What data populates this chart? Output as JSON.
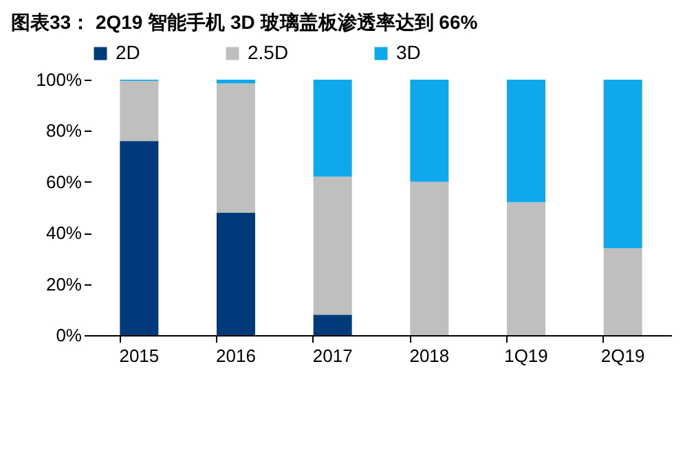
{
  "chart_data": {
    "type": "bar",
    "title": "图表33：  2Q19 智能手机 3D 玻璃盖板渗透率达到 66%",
    "categories": [
      "2015",
      "2016",
      "2017",
      "2018",
      "1Q19",
      "2Q19"
    ],
    "stacked": true,
    "series": [
      {
        "name": "2D",
        "color": "#003a7a",
        "values": [
          76,
          48,
          8,
          0,
          0,
          0
        ]
      },
      {
        "name": "2.5D",
        "color": "#bfbfbf",
        "values": [
          23.5,
          50.5,
          54,
          60,
          52,
          34
        ]
      },
      {
        "name": "3D",
        "color": "#10a8ec",
        "values": [
          0.5,
          1.5,
          38,
          40,
          48,
          66
        ]
      }
    ],
    "ylim": [
      0,
      100
    ],
    "yticks": [
      {
        "value": 0,
        "label": "0%"
      },
      {
        "value": 20,
        "label": "20%"
      },
      {
        "value": 40,
        "label": "40%"
      },
      {
        "value": 60,
        "label": "60%"
      },
      {
        "value": 80,
        "label": "80%"
      },
      {
        "value": 100,
        "label": "100%"
      }
    ],
    "grid": false,
    "legend": "top"
  }
}
